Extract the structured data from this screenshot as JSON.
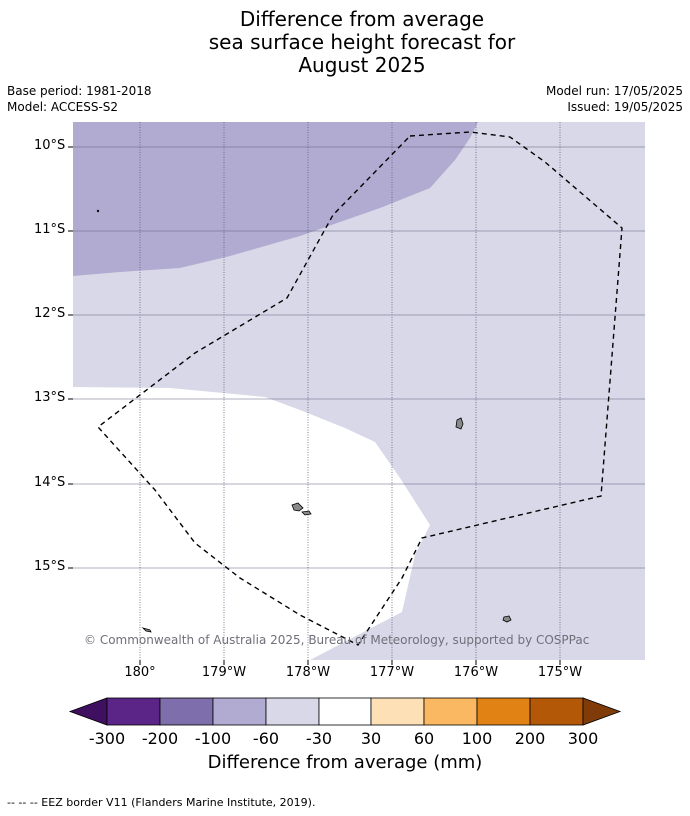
{
  "title": {
    "line1": "Difference from average",
    "line2": "sea surface height forecast for",
    "line3": "August 2025"
  },
  "meta_left": {
    "base_period": "Base period: 1981-2018",
    "model": "Model: ACCESS-S2"
  },
  "meta_right": {
    "model_run": "Model run: 17/05/2025",
    "issued": "Issued: 19/05/2025"
  },
  "map": {
    "latitude_labels": [
      "10°S",
      "11°S",
      "12°S",
      "13°S",
      "14°S",
      "15°S"
    ],
    "longitude_labels": [
      "180°",
      "179°W",
      "178°W",
      "177°W",
      "176°W",
      "175°W"
    ],
    "copyright": "© Commonwealth of Australia 2025, Bureau of Meteorology, supported by COSPPac",
    "region_colors": {
      "minus_100_to_minus_60": "#b1aad1",
      "minus_60_to_minus_30": "#d8d8e8",
      "minus_30_to_30": "#ffffff"
    }
  },
  "colorbar": {
    "tick_labels": [
      "-300",
      "-200",
      "-100",
      "-60",
      "-30",
      "30",
      "60",
      "100",
      "200",
      "300"
    ],
    "colors": [
      "#401060",
      "#5a2587",
      "#7e6eab",
      "#b1aad1",
      "#d8d8e8",
      "#ffffff",
      "#fde0b6",
      "#fbb862",
      "#e08214",
      "#b35806",
      "#7f3b08"
    ],
    "label": "Difference from average (mm)"
  },
  "footnote": "--  --  -- EEZ border V11 (Flanders Marine Institute, 2019)."
}
